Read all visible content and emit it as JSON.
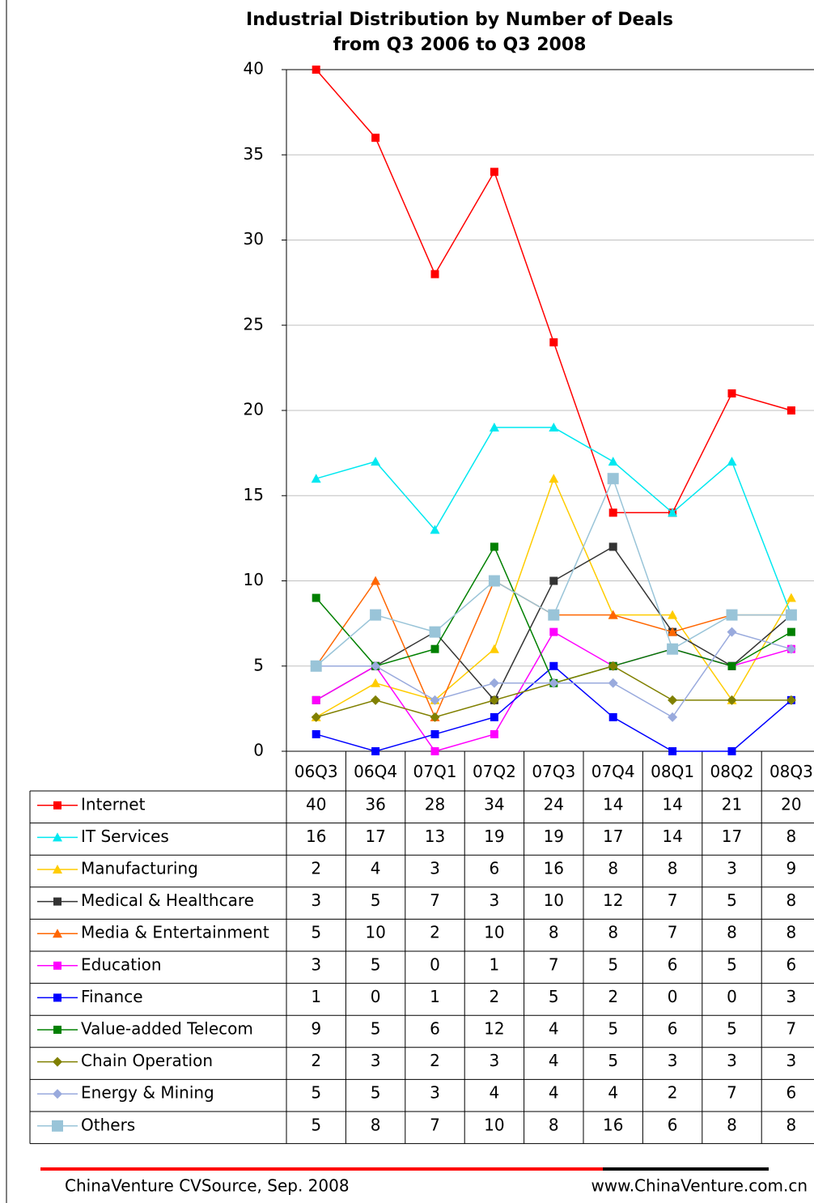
{
  "chart_data": {
    "type": "line",
    "title": "Industrial Distribution by Number of Deals",
    "subtitle": "from Q3 2006 to Q3 2008",
    "categories": [
      "06Q3",
      "06Q4",
      "07Q1",
      "07Q2",
      "07Q3",
      "07Q4",
      "08Q1",
      "08Q2",
      "08Q3"
    ],
    "ylim": [
      0,
      40
    ],
    "yticks": [
      0,
      5,
      10,
      15,
      20,
      25,
      30,
      35,
      40
    ],
    "grid": true,
    "series": [
      {
        "name": "Internet",
        "color": "#ff0000",
        "marker": "square",
        "values": [
          40,
          36,
          28,
          34,
          24,
          14,
          14,
          21,
          20
        ]
      },
      {
        "name": "IT Services",
        "color": "#00e8f0",
        "marker": "triangle",
        "values": [
          16,
          17,
          13,
          19,
          19,
          17,
          14,
          17,
          8
        ]
      },
      {
        "name": "Manufacturing",
        "color": "#ffcc00",
        "marker": "triangle",
        "values": [
          2,
          4,
          3,
          6,
          16,
          8,
          8,
          3,
          9
        ]
      },
      {
        "name": "Medical & Healthcare",
        "color": "#333333",
        "marker": "square",
        "values": [
          3,
          5,
          7,
          3,
          10,
          12,
          7,
          5,
          8
        ]
      },
      {
        "name": "Media & Entertainment",
        "color": "#ff6600",
        "marker": "triangle",
        "values": [
          5,
          10,
          2,
          10,
          8,
          8,
          7,
          8,
          8
        ]
      },
      {
        "name": "Education",
        "color": "#ff00ff",
        "marker": "square",
        "values": [
          3,
          5,
          0,
          1,
          7,
          5,
          6,
          5,
          6
        ]
      },
      {
        "name": "Finance",
        "color": "#0000ff",
        "marker": "square",
        "values": [
          1,
          0,
          1,
          2,
          5,
          2,
          0,
          0,
          3
        ]
      },
      {
        "name": "Value-added Telecom",
        "color": "#008000",
        "marker": "square",
        "values": [
          9,
          5,
          6,
          12,
          4,
          5,
          6,
          5,
          7
        ]
      },
      {
        "name": "Chain Operation",
        "color": "#808000",
        "marker": "diamond",
        "values": [
          2,
          3,
          2,
          3,
          4,
          5,
          3,
          3,
          3
        ]
      },
      {
        "name": "Energy & Mining",
        "color": "#99aadd",
        "marker": "diamond",
        "values": [
          5,
          5,
          3,
          4,
          4,
          4,
          2,
          7,
          6
        ]
      },
      {
        "name": "Others",
        "color": "#99c4d8",
        "marker": "bigsquare",
        "values": [
          5,
          8,
          7,
          10,
          8,
          16,
          6,
          8,
          8
        ]
      }
    ],
    "source": "ChinaVenture CVSource, Sep. 2008",
    "website": "www.ChinaVenture.com.cn"
  }
}
